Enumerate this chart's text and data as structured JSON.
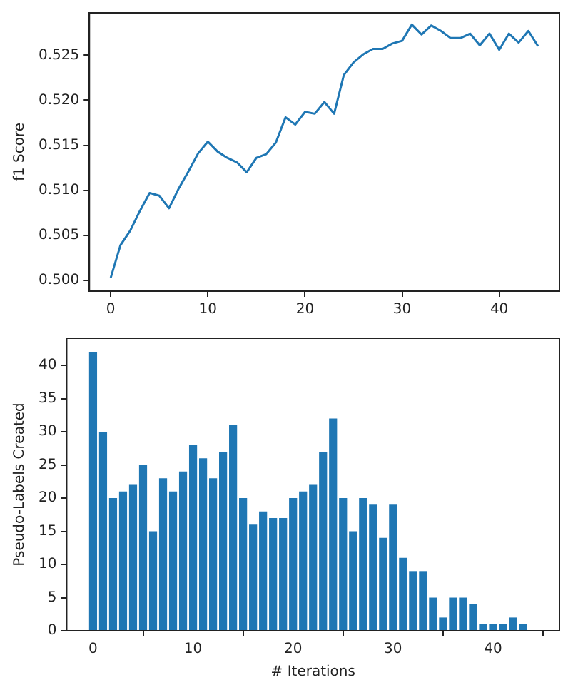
{
  "chart_data": [
    {
      "type": "line",
      "ylabel": "f1 Score",
      "x": [
        0,
        1,
        2,
        3,
        4,
        5,
        6,
        7,
        8,
        9,
        10,
        11,
        12,
        13,
        14,
        15,
        16,
        17,
        18,
        19,
        20,
        21,
        22,
        23,
        24,
        25,
        26,
        27,
        28,
        29,
        30,
        31,
        32,
        33,
        34,
        35,
        36,
        37,
        38,
        39,
        40,
        41,
        42,
        43,
        44
      ],
      "series": [
        {
          "color": "#1f77b4",
          "values": [
            0.5003,
            0.5039,
            0.5055,
            0.5077,
            0.5097,
            0.5094,
            0.508,
            0.5102,
            0.5121,
            0.5141,
            0.5154,
            0.5143,
            0.5136,
            0.5131,
            0.512,
            0.5136,
            0.514,
            0.5153,
            0.5181,
            0.5173,
            0.5187,
            0.5185,
            0.5198,
            0.5185,
            0.5228,
            0.5242,
            0.5251,
            0.5257,
            0.5257,
            0.5263,
            0.5266,
            0.5284,
            0.5273,
            0.5283,
            0.5277,
            0.5269,
            0.5269,
            0.5274,
            0.5261,
            0.5274,
            0.5256,
            0.5274,
            0.5264,
            0.5277,
            0.526
          ]
        }
      ],
      "xlim": [
        -2.2,
        46.2
      ],
      "xticks": [
        0,
        10,
        20,
        30,
        40
      ],
      "ylim": [
        0.4988,
        0.5297
      ],
      "yticks": [
        {
          "value": 0.5,
          "label": "0.500"
        },
        {
          "value": 0.505,
          "label": "0.505"
        },
        {
          "value": 0.51,
          "label": "0.510"
        },
        {
          "value": 0.515,
          "label": "0.515"
        },
        {
          "value": 0.52,
          "label": "0.520"
        },
        {
          "value": 0.525,
          "label": "0.525"
        }
      ],
      "grid": false,
      "legend": false,
      "marker": "none"
    },
    {
      "type": "bar",
      "xlabel": "# Iterations",
      "ylabel": "Pseudo-Labels Created",
      "x": [
        0,
        1,
        2,
        3,
        4,
        5,
        6,
        7,
        8,
        9,
        10,
        11,
        12,
        13,
        14,
        15,
        16,
        17,
        18,
        19,
        20,
        21,
        22,
        23,
        24,
        25,
        26,
        27,
        28,
        29,
        30,
        31,
        32,
        33,
        34,
        35,
        36,
        37,
        38,
        39,
        40,
        41,
        42,
        43,
        44
      ],
      "series": [
        {
          "color": "#1f77b4",
          "values": [
            42,
            30,
            20,
            21,
            22,
            25,
            15,
            23,
            21,
            24,
            28,
            26,
            23,
            27,
            31,
            20,
            16,
            18,
            17,
            17,
            20,
            21,
            22,
            27,
            32,
            20,
            15,
            20,
            19,
            14,
            19,
            11,
            9,
            9,
            5,
            2,
            5,
            5,
            4,
            1,
            1,
            1,
            2,
            1,
            0
          ]
        }
      ],
      "xlim": [
        -2.64,
        46.64
      ],
      "xticks": [
        0,
        10,
        20,
        30,
        40
      ],
      "ylim": [
        0,
        44.1
      ],
      "yticks": [
        0,
        5,
        10,
        15,
        20,
        25,
        30,
        35,
        40
      ],
      "grid": false,
      "legend": false
    }
  ]
}
